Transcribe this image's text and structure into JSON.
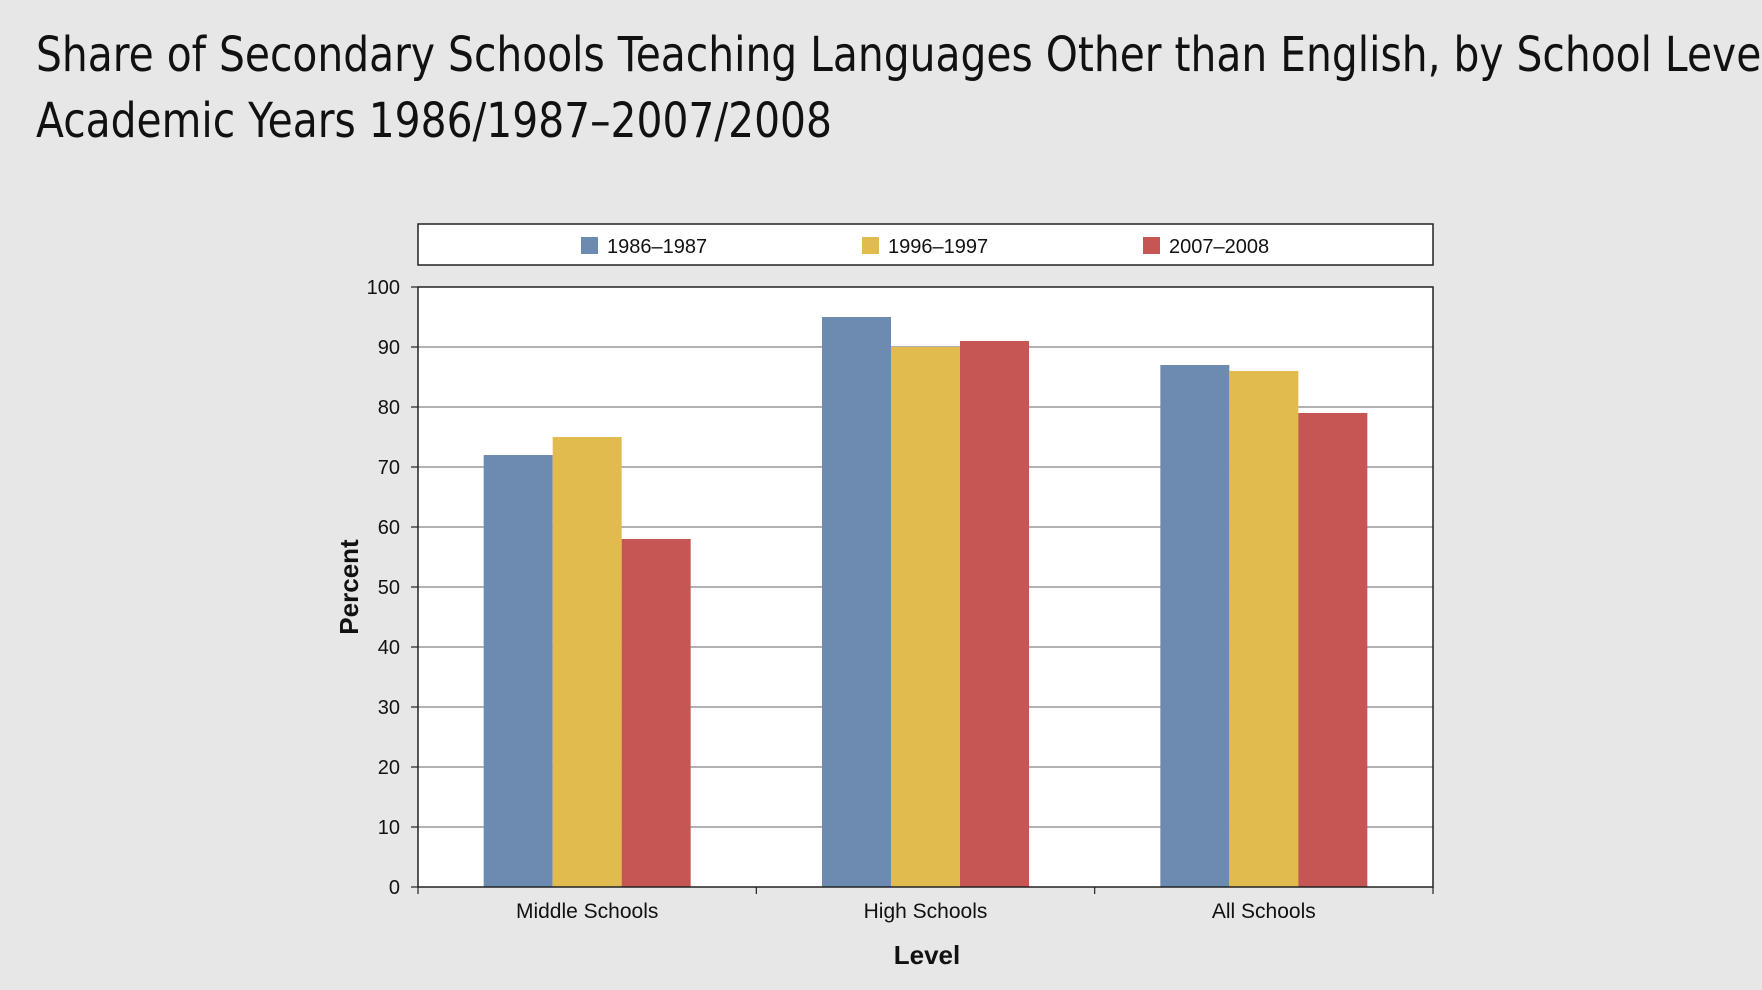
{
  "title_lines": [
    "Share of Secondary Schools Teaching Languages Other than English, by School Level,",
    "Academic Years 1986/1987–2007/2008"
  ],
  "chart_data": {
    "type": "bar",
    "categories": [
      "Middle Schools",
      "High Schools",
      "All Schools"
    ],
    "series": [
      {
        "name": "1986–1987",
        "color": "#6d8bb1",
        "values": [
          72,
          95,
          87
        ]
      },
      {
        "name": "1996–1997",
        "color": "#e2bb4e",
        "values": [
          75,
          90,
          86
        ]
      },
      {
        "name": "2007–2008",
        "color": "#c55653",
        "values": [
          58,
          91,
          79
        ]
      }
    ],
    "xlabel": "Level",
    "ylabel": "Percent",
    "ylim": [
      0,
      100
    ],
    "yticks": [
      0,
      10,
      20,
      30,
      40,
      50,
      60,
      70,
      80,
      90,
      100
    ],
    "grid": true,
    "legend_position": "top"
  }
}
